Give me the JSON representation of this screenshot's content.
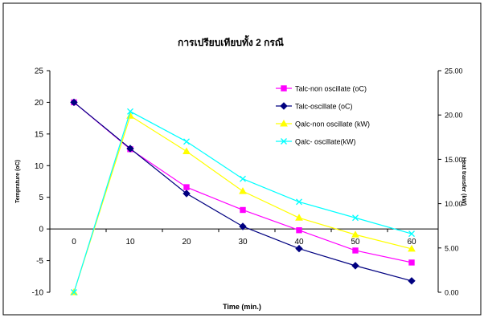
{
  "chart_data": {
    "type": "line",
    "title": "การเปรียบเทียบทั้ง 2 กรณี",
    "xlabel": "Time (min.)",
    "ylabel": "Temprature (oC)",
    "y2label": "Heat transfer (kW)",
    "categories": [
      "0",
      "10",
      "20",
      "30",
      "40",
      "50",
      "60"
    ],
    "ylim": [
      -10,
      25
    ],
    "y_ticks": [
      -10,
      -5,
      0,
      5,
      10,
      15,
      20,
      25
    ],
    "y_tick_labels": [
      "-10",
      "-5",
      "0",
      "5",
      "10",
      "15",
      "20",
      "25"
    ],
    "y2lim": [
      0,
      25
    ],
    "y2_ticks": [
      0,
      5,
      10,
      15,
      20,
      25
    ],
    "y2_tick_labels": [
      "0.00",
      "5.00",
      "10.00",
      "15.00",
      "20.00",
      "25.00"
    ],
    "grid": false,
    "legend_position": "top-right",
    "series": [
      {
        "name": "Talc-non oscillate (oC)",
        "axis": "left",
        "color": "#ff00ff",
        "marker": "square",
        "values": [
          20,
          12.6,
          6.6,
          3.0,
          -0.2,
          -3.4,
          -5.3
        ]
      },
      {
        "name": "Talc-oscillate (oC)",
        "axis": "left",
        "color": "#000080",
        "marker": "diamond",
        "values": [
          20,
          12.7,
          5.6,
          0.4,
          -3.1,
          -5.8,
          -8.2
        ]
      },
      {
        "name": "Qalc-non oscillate (kW)",
        "axis": "right",
        "color": "#ffff00",
        "marker": "triangle",
        "values": [
          0.0,
          19.9,
          15.9,
          11.4,
          8.4,
          6.5,
          4.9
        ]
      },
      {
        "name": "Qalc- oscillate(kW)",
        "axis": "right",
        "color": "#00ffff",
        "marker": "x",
        "values": [
          0.0,
          20.4,
          17.0,
          12.8,
          10.2,
          8.4,
          6.6
        ]
      }
    ]
  }
}
